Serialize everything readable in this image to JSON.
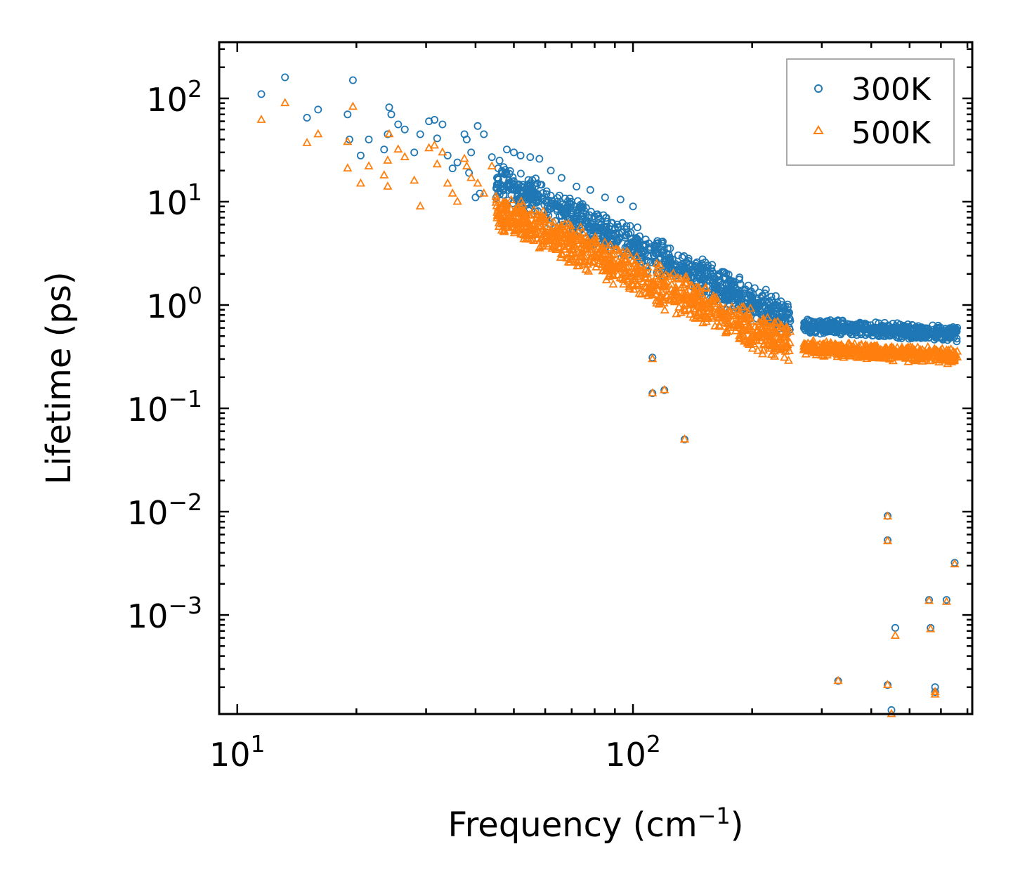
{
  "chart_data": {
    "type": "scatter",
    "xscale": "log",
    "yscale": "log",
    "xlim": [
      9,
      720
    ],
    "ylim": [
      0.00011,
      350
    ],
    "xlabel": "Frequency (cm",
    "xlabel_sup": "−1",
    "xlabel_end": ")",
    "ylabel": "Lifetime (ps)",
    "xticks": [
      {
        "base": "10",
        "exp": "1",
        "value": 10
      },
      {
        "base": "10",
        "exp": "2",
        "value": 100
      }
    ],
    "yticks": [
      {
        "base": "10",
        "exp": "2",
        "value": 100
      },
      {
        "base": "10",
        "exp": "1",
        "value": 10
      },
      {
        "base": "10",
        "exp": "0",
        "value": 1
      },
      {
        "base": "10",
        "exp": "−1",
        "value": 0.1
      },
      {
        "base": "10",
        "exp": "−2",
        "value": 0.01
      },
      {
        "base": "10",
        "exp": "−3",
        "value": 0.001
      }
    ],
    "legend_position": "top-right",
    "series": [
      {
        "name": "300K",
        "color": "#1f77b4",
        "marker": "circle",
        "points": [
          [
            11.5,
            110
          ],
          [
            13.2,
            160
          ],
          [
            15.0,
            65
          ],
          [
            16.0,
            78
          ],
          [
            19.0,
            70
          ],
          [
            19.6,
            150
          ],
          [
            19.2,
            40
          ],
          [
            20.5,
            28
          ],
          [
            21.5,
            40
          ],
          [
            23.5,
            32
          ],
          [
            24.2,
            82
          ],
          [
            24.5,
            70
          ],
          [
            24.0,
            45
          ],
          [
            25.5,
            56
          ],
          [
            26.5,
            50
          ],
          [
            28.0,
            30
          ],
          [
            29.0,
            45
          ],
          [
            30.5,
            60
          ],
          [
            31.5,
            62
          ],
          [
            32.0,
            41
          ],
          [
            33.0,
            56
          ],
          [
            34.0,
            28
          ],
          [
            35.0,
            21
          ],
          [
            36.0,
            24
          ],
          [
            37.5,
            45
          ],
          [
            38.0,
            40
          ],
          [
            39.0,
            30
          ],
          [
            40.5,
            54
          ],
          [
            42.0,
            45
          ],
          [
            38.5,
            19
          ],
          [
            40.0,
            11
          ],
          [
            41.0,
            12
          ],
          [
            44.0,
            27
          ],
          [
            46.0,
            25
          ],
          [
            48.0,
            32
          ],
          [
            50.0,
            30
          ],
          [
            52.0,
            28
          ],
          [
            55.0,
            27
          ],
          [
            58.0,
            26
          ],
          [
            62.0,
            20
          ],
          [
            66.0,
            17
          ],
          [
            72.0,
            14
          ],
          [
            78.0,
            13
          ],
          [
            85.0,
            11
          ],
          [
            93.0,
            10.5
          ],
          [
            100,
            9
          ],
          [
            112,
            0.31
          ],
          [
            112,
            0.14
          ],
          [
            120,
            0.15
          ],
          [
            135,
            0.05
          ],
          [
            330,
            0.00023
          ],
          [
            440,
            0.0091
          ],
          [
            440,
            0.0053
          ],
          [
            450,
            0.00012
          ],
          [
            460,
            0.00075
          ],
          [
            440,
            0.00021
          ],
          [
            560,
            0.0014
          ],
          [
            565,
            0.00075
          ],
          [
            580,
            0.0002
          ],
          [
            620,
            0.0014
          ],
          [
            650,
            0.0032
          ],
          [
            580,
            0.00018
          ]
        ]
      },
      {
        "name": "500K",
        "color": "#ff7f0e",
        "marker": "triangle",
        "points": [
          [
            11.5,
            62
          ],
          [
            13.2,
            90
          ],
          [
            15.0,
            37
          ],
          [
            16.0,
            45
          ],
          [
            19.0,
            38
          ],
          [
            19.6,
            83
          ],
          [
            19.0,
            21
          ],
          [
            20.5,
            15
          ],
          [
            21.5,
            22
          ],
          [
            23.5,
            18
          ],
          [
            24.2,
            45
          ],
          [
            24.0,
            25
          ],
          [
            24.0,
            14
          ],
          [
            25.5,
            32
          ],
          [
            26.5,
            27
          ],
          [
            28.0,
            16
          ],
          [
            29.0,
            9
          ],
          [
            30.5,
            33
          ],
          [
            31.5,
            35
          ],
          [
            32.0,
            23
          ],
          [
            33.0,
            30
          ],
          [
            34.0,
            15
          ],
          [
            35.0,
            12
          ],
          [
            36.0,
            10
          ],
          [
            37.5,
            26
          ],
          [
            38.0,
            22
          ],
          [
            39.0,
            17
          ],
          [
            40.5,
            15
          ],
          [
            42.0,
            12
          ],
          [
            44.0,
            22
          ],
          [
            112,
            0.3
          ],
          [
            112,
            0.14
          ],
          [
            120,
            0.15
          ],
          [
            135,
            0.05
          ],
          [
            330,
            0.00023
          ],
          [
            440,
            0.009
          ],
          [
            440,
            0.0052
          ],
          [
            450,
            0.00011
          ],
          [
            460,
            0.00063
          ],
          [
            440,
            0.00021
          ],
          [
            560,
            0.00137
          ],
          [
            565,
            0.00073
          ],
          [
            580,
            0.00018
          ],
          [
            620,
            0.00134
          ],
          [
            650,
            0.0031
          ],
          [
            580,
            0.00017
          ]
        ]
      }
    ],
    "dense_bands": [
      {
        "series": "300K",
        "x_start": 45,
        "x_end": 250,
        "log_center_start": 1.22,
        "log_center_end": -0.15,
        "log_spread": 0.2,
        "count": 900
      },
      {
        "series": "500K",
        "x_start": 45,
        "x_end": 250,
        "log_center_start": 0.92,
        "log_center_end": -0.4,
        "log_spread": 0.22,
        "count": 900
      },
      {
        "series": "300K",
        "x_start": 270,
        "x_end": 660,
        "log_center_start": -0.2,
        "log_center_end": -0.28,
        "log_spread": 0.08,
        "count": 500
      },
      {
        "series": "500K",
        "x_start": 270,
        "x_end": 660,
        "log_center_start": -0.42,
        "log_center_end": -0.5,
        "log_spread": 0.08,
        "count": 500
      }
    ]
  }
}
